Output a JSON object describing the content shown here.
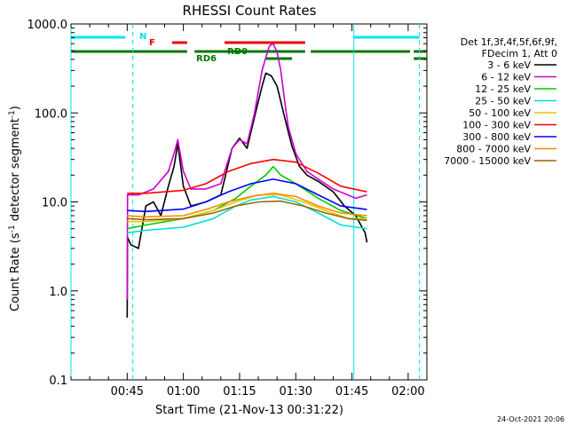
{
  "chart_data": {
    "type": "line",
    "title": "RHESSI Count Rates",
    "xlabel": "Start Time (21-Nov-13 00:31:22)",
    "ylabel_main": "Count Rate (s",
    "ylabel_sup": "-1",
    "ylabel_tail": " detector segment",
    "ylabel_end": ")",
    "y_scale": "log",
    "ylim": [
      0.1,
      1000.0
    ],
    "y_ticks": [
      {
        "value": 0.1,
        "label": "0.1"
      },
      {
        "value": 1.0,
        "label": "1.0"
      },
      {
        "value": 10.0,
        "label": "10.0"
      },
      {
        "value": 100.0,
        "label": "100.0"
      },
      {
        "value": 1000.0,
        "label": "1000.0"
      }
    ],
    "xlim_minutes_since_midnight": [
      30,
      125
    ],
    "x_ticks": [
      {
        "value": 45,
        "label": "00:45"
      },
      {
        "value": 60,
        "label": "01:00"
      },
      {
        "value": 75,
        "label": "01:15"
      },
      {
        "value": 90,
        "label": "01:30"
      },
      {
        "value": 105,
        "label": "01:45"
      },
      {
        "value": 120,
        "label": "02:00"
      }
    ],
    "legend_header": [
      "Det 1f,3f,4f,5f,6f,9f,",
      "FDecim 1, Att 0"
    ],
    "series": [
      {
        "name": "3 - 6 keV",
        "color": "#000000",
        "points": [
          [
            45,
            0.5
          ],
          [
            45.1,
            4.0
          ],
          [
            46,
            3.3
          ],
          [
            48,
            3.0
          ],
          [
            50,
            9
          ],
          [
            52,
            10
          ],
          [
            54,
            7
          ],
          [
            56,
            15
          ],
          [
            57.5,
            25
          ],
          [
            58.5,
            45
          ],
          [
            60,
            15
          ],
          [
            62,
            9
          ],
          [
            66,
            10
          ],
          [
            70,
            12
          ],
          [
            73,
            40
          ],
          [
            75,
            52
          ],
          [
            77,
            40
          ],
          [
            79,
            90
          ],
          [
            81,
            200
          ],
          [
            82,
            280
          ],
          [
            83.5,
            260
          ],
          [
            85,
            200
          ],
          [
            87,
            90
          ],
          [
            89,
            42
          ],
          [
            91,
            25
          ],
          [
            93,
            20
          ],
          [
            96,
            17
          ],
          [
            100,
            13
          ],
          [
            103,
            9
          ],
          [
            106,
            7
          ],
          [
            108.5,
            4.5
          ],
          [
            109,
            3.5
          ]
        ]
      },
      {
        "name": "6 - 12 keV",
        "color": "#cc00cc",
        "points": [
          [
            45,
            0.8
          ],
          [
            45.1,
            12
          ],
          [
            48,
            12
          ],
          [
            52,
            14
          ],
          [
            56,
            22
          ],
          [
            57.5,
            35
          ],
          [
            58.5,
            50
          ],
          [
            60,
            22
          ],
          [
            62,
            14
          ],
          [
            66,
            14
          ],
          [
            70,
            16
          ],
          [
            73,
            40
          ],
          [
            75,
            50
          ],
          [
            77,
            45
          ],
          [
            79,
            100
          ],
          [
            81,
            300
          ],
          [
            82,
            420
          ],
          [
            83,
            570
          ],
          [
            84,
            600
          ],
          [
            85,
            480
          ],
          [
            86,
            300
          ],
          [
            87,
            140
          ],
          [
            88,
            70
          ],
          [
            90,
            35
          ],
          [
            93,
            22
          ],
          [
            96,
            18
          ],
          [
            100,
            14
          ],
          [
            106,
            11
          ],
          [
            109,
            12
          ]
        ]
      },
      {
        "name": "12 - 25 keV",
        "color": "#00cc00",
        "points": [
          [
            45,
            5
          ],
          [
            50,
            5.5
          ],
          [
            60,
            6.5
          ],
          [
            68,
            8
          ],
          [
            74,
            11
          ],
          [
            78,
            15
          ],
          [
            82,
            20
          ],
          [
            84,
            25
          ],
          [
            86,
            20
          ],
          [
            90,
            16
          ],
          [
            96,
            11
          ],
          [
            102,
            8
          ],
          [
            109,
            6.5
          ]
        ]
      },
      {
        "name": "25 - 50 keV",
        "color": "#00dddd",
        "points": [
          [
            45,
            4.5
          ],
          [
            50,
            4.8
          ],
          [
            60,
            5.2
          ],
          [
            68,
            6.5
          ],
          [
            74,
            9
          ],
          [
            78,
            10.5
          ],
          [
            84,
            11.5
          ],
          [
            90,
            10
          ],
          [
            96,
            7.5
          ],
          [
            102,
            5.5
          ],
          [
            109,
            5
          ]
        ]
      },
      {
        "name": "50 - 100 keV",
        "color": "#ddcc00",
        "points": [
          [
            45,
            6
          ],
          [
            50,
            6
          ],
          [
            60,
            6.5
          ],
          [
            68,
            8
          ],
          [
            74,
            10
          ],
          [
            80,
            12
          ],
          [
            86,
            12
          ],
          [
            92,
            10
          ],
          [
            98,
            8
          ],
          [
            104,
            6.5
          ],
          [
            109,
            6.5
          ]
        ]
      },
      {
        "name": "100 - 300 keV",
        "color": "#ff0000",
        "points": [
          [
            45,
            12.5
          ],
          [
            50,
            12.5
          ],
          [
            60,
            13.5
          ],
          [
            66,
            16
          ],
          [
            72,
            22
          ],
          [
            78,
            27
          ],
          [
            84,
            30
          ],
          [
            90,
            28
          ],
          [
            96,
            21
          ],
          [
            102,
            15
          ],
          [
            109,
            13
          ]
        ]
      },
      {
        "name": "300 - 800 keV",
        "color": "#0000ff",
        "points": [
          [
            45,
            8
          ],
          [
            50,
            7.8
          ],
          [
            60,
            8.3
          ],
          [
            66,
            10
          ],
          [
            72,
            13
          ],
          [
            78,
            16
          ],
          [
            84,
            18
          ],
          [
            90,
            16
          ],
          [
            96,
            12
          ],
          [
            102,
            9
          ],
          [
            109,
            8.2
          ]
        ]
      },
      {
        "name": "800 - 7000 keV",
        "color": "#ff8800",
        "points": [
          [
            45,
            7
          ],
          [
            50,
            6.8
          ],
          [
            60,
            7
          ],
          [
            66,
            8.2
          ],
          [
            72,
            10
          ],
          [
            78,
            11.5
          ],
          [
            84,
            12.5
          ],
          [
            90,
            11.5
          ],
          [
            96,
            9
          ],
          [
            102,
            7.5
          ],
          [
            109,
            7
          ]
        ]
      },
      {
        "name": "7000 - 15000 keV",
        "color": "#996600",
        "points": [
          [
            45,
            6.5
          ],
          [
            50,
            6.3
          ],
          [
            60,
            6.5
          ],
          [
            68,
            7.5
          ],
          [
            74,
            9
          ],
          [
            80,
            10
          ],
          [
            86,
            10.2
          ],
          [
            92,
            9
          ],
          [
            98,
            7.5
          ],
          [
            104,
            6.5
          ],
          [
            109,
            6.2
          ]
        ]
      }
    ],
    "annotations": {
      "N_label": "N",
      "F_label": "F",
      "RD0_label": "RD0",
      "RD6_label": "RD6",
      "N_color": "#00e5ee",
      "F_color": "#ee0000",
      "RD_color": "#007700",
      "N_bars": [
        [
          30,
          44.5
        ],
        [
          105.5,
          123
        ]
      ],
      "F_bars": [
        [
          57,
          61
        ],
        [
          71,
          92.5
        ]
      ],
      "RD0_bars": [
        [
          30,
          61
        ],
        [
          63,
          92.5
        ],
        [
          94,
          120.5
        ],
        [
          121.5,
          125
        ]
      ],
      "RD6_bars": [
        [
          121.5,
          125
        ]
      ],
      "RD6_bar_main": [
        [
          82,
          89
        ]
      ],
      "vlines_solid": [
        30,
        105.5
      ],
      "vlines_dashed": [
        46.5,
        123
      ]
    },
    "legend_placement": "right"
  },
  "footer_date": "24-Oct-2021 20:06"
}
